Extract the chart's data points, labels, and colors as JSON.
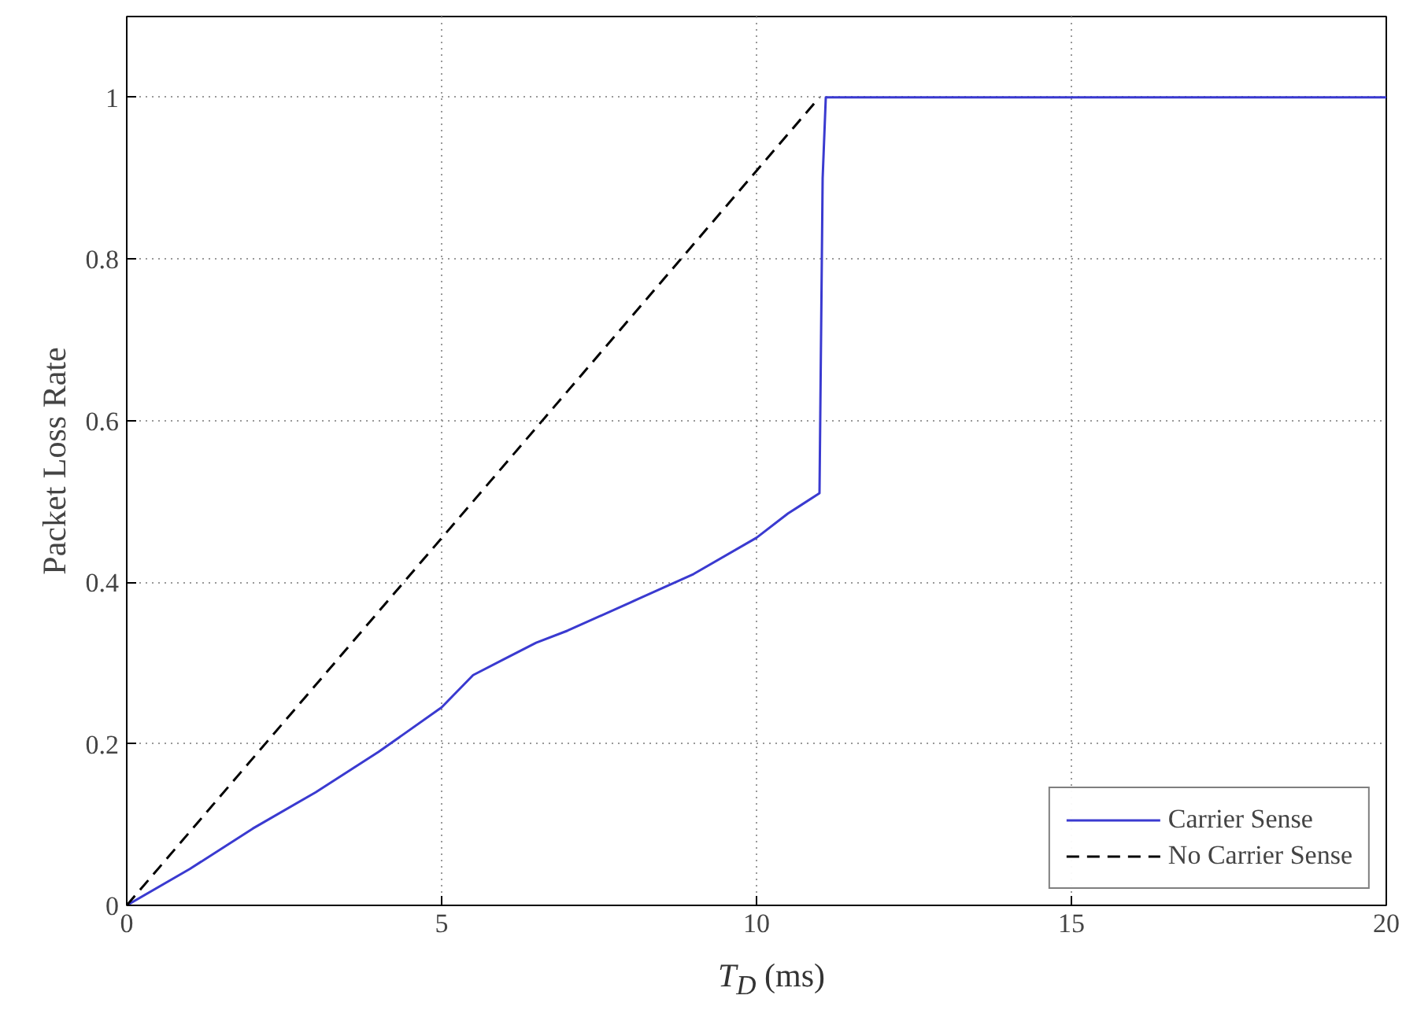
{
  "chart_data": {
    "type": "line",
    "xlabel": "T$_{D}$ (ms)",
    "ylabel": "Packet Loss Rate",
    "xlim": [
      0,
      20
    ],
    "ylim": [
      0,
      1.1
    ],
    "xticks": [
      0,
      5,
      10,
      15,
      20
    ],
    "yticks": [
      0,
      0.2,
      0.4,
      0.6,
      0.8,
      1
    ],
    "grid": true,
    "legend": "bottom right",
    "series": [
      {
        "name": "Carrier Sense",
        "color": "#3a3ad0",
        "line_style": "solid",
        "x": [
          0,
          1,
          2,
          3,
          4,
          5,
          5.5,
          6,
          6.5,
          7,
          8,
          9,
          10,
          10.5,
          11,
          11.05,
          11.1,
          15,
          20
        ],
        "values": [
          0,
          0.045,
          0.095,
          0.14,
          0.19,
          0.245,
          0.285,
          0.305,
          0.325,
          0.34,
          0.375,
          0.41,
          0.455,
          0.485,
          0.51,
          0.9,
          1,
          1,
          1
        ]
      },
      {
        "name": "No Carrier Sense",
        "color": "#000000",
        "line_style": "dashed",
        "x": [
          0,
          11
        ],
        "values": [
          0,
          1
        ]
      }
    ]
  }
}
